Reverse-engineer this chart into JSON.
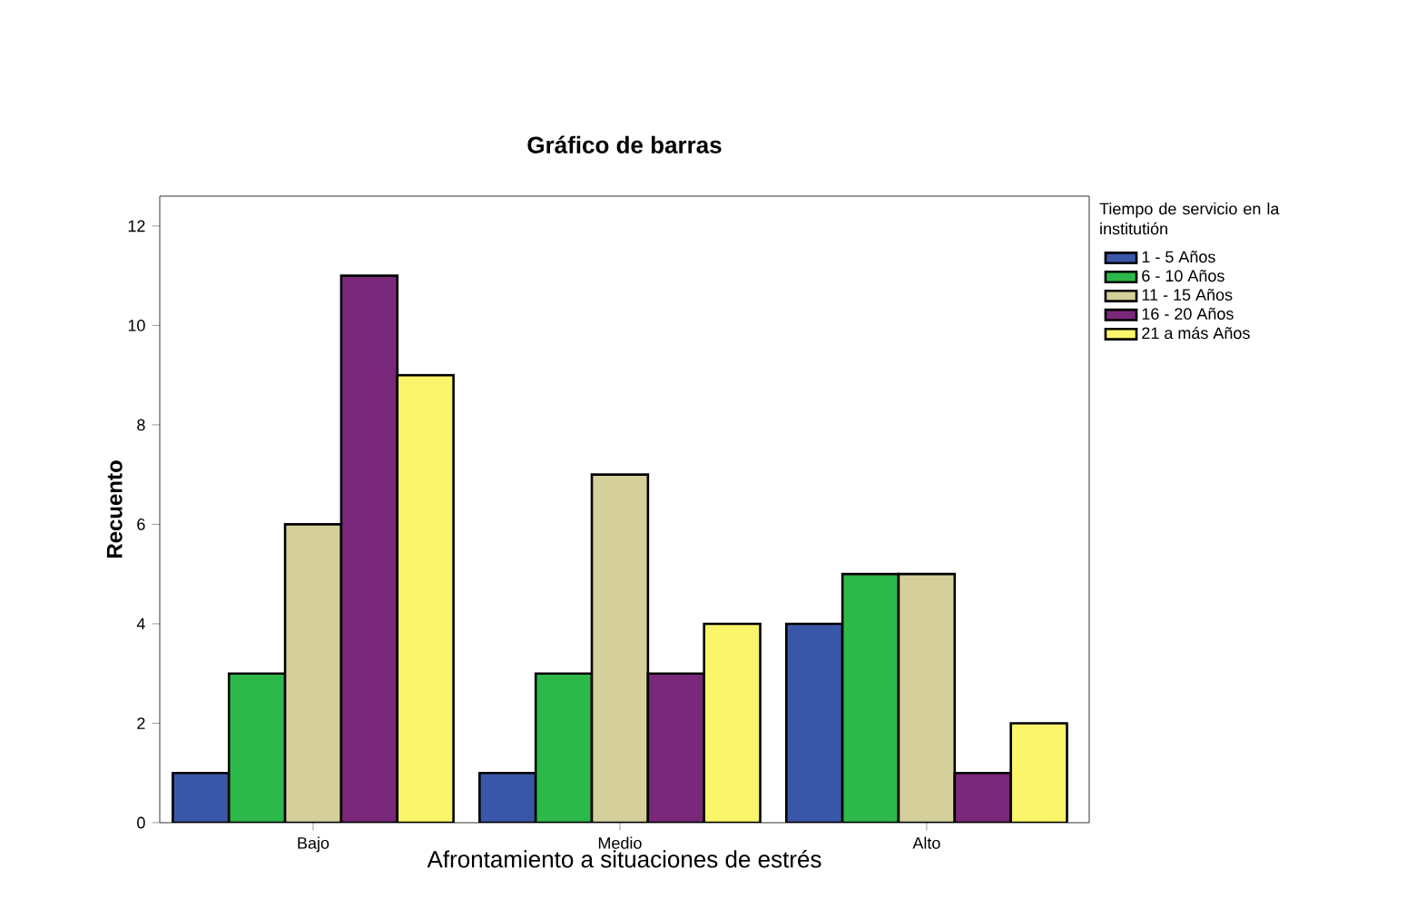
{
  "chart_data": {
    "type": "bar",
    "title": "Gráfico de barras",
    "xlabel": "Afrontamiento a situaciones de estrés",
    "ylabel": "Recuento",
    "legend_title": "Tiempo de servicio en la institutión",
    "categories": [
      "Bajo",
      "Medio",
      "Alto"
    ],
    "series": [
      {
        "name": "1 - 5 Años",
        "color": "#3a56a8",
        "values": [
          1,
          1,
          4
        ]
      },
      {
        "name": "6 - 10 Años",
        "color": "#2db84a",
        "values": [
          3,
          3,
          5
        ]
      },
      {
        "name": "11 - 15 Años",
        "color": "#d5d09b",
        "values": [
          6,
          7,
          5
        ]
      },
      {
        "name": "16 - 20 Años",
        "color": "#7a2879",
        "values": [
          11,
          3,
          1
        ]
      },
      {
        "name": "21 a más Años",
        "color": "#faf56b",
        "values": [
          9,
          4,
          2
        ]
      }
    ],
    "ylim": [
      0,
      12.6
    ],
    "yticks": [
      0,
      2,
      4,
      6,
      8,
      10,
      12
    ],
    "legend": "top right",
    "grid": false
  }
}
